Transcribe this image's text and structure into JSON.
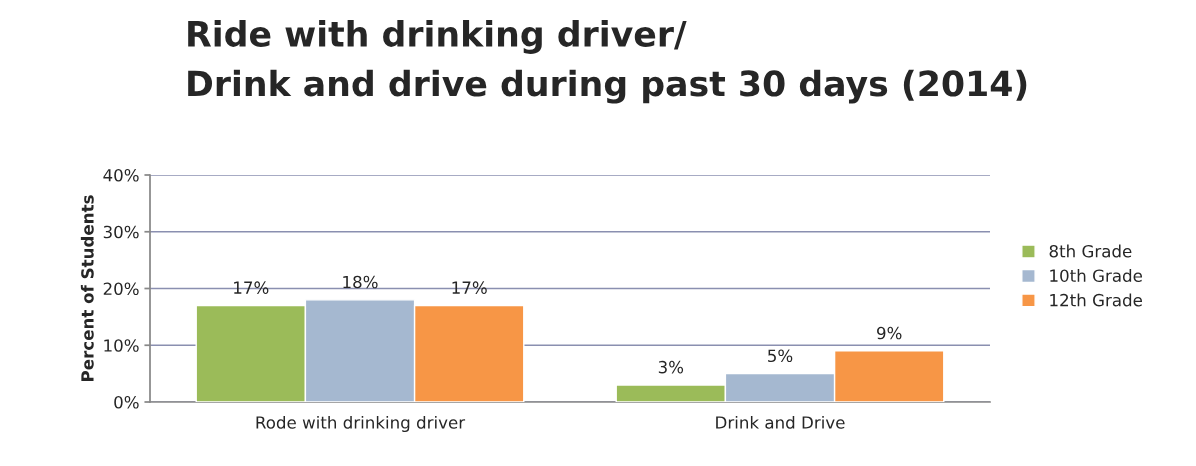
{
  "chart_data": {
    "type": "bar",
    "title": "Ride with drinking driver/\nDrink and drive during past 30 days (2014)",
    "ylabel": "Percent of Students",
    "categories": [
      "Rode with drinking driver",
      "Drink and Drive"
    ],
    "series": [
      {
        "name": "8th Grade",
        "color": "#9bbb59",
        "values": [
          17,
          3
        ],
        "value_labels": [
          "17%",
          "3%"
        ]
      },
      {
        "name": "10th Grade",
        "color": "#a5b8d0",
        "values": [
          18,
          5
        ],
        "value_labels": [
          "18%",
          "5%"
        ]
      },
      {
        "name": "12th Grade",
        "color": "#f79646",
        "values": [
          17,
          9
        ],
        "value_labels": [
          "17%",
          "9%"
        ]
      }
    ],
    "ylim": [
      0,
      40
    ],
    "yticks": [
      {
        "value": 0,
        "label": "0%"
      },
      {
        "value": 10,
        "label": "10%"
      },
      {
        "value": 20,
        "label": "20%"
      },
      {
        "value": 30,
        "label": "30%"
      },
      {
        "value": 40,
        "label": "40%"
      }
    ],
    "grid": "y",
    "legend": "right"
  }
}
